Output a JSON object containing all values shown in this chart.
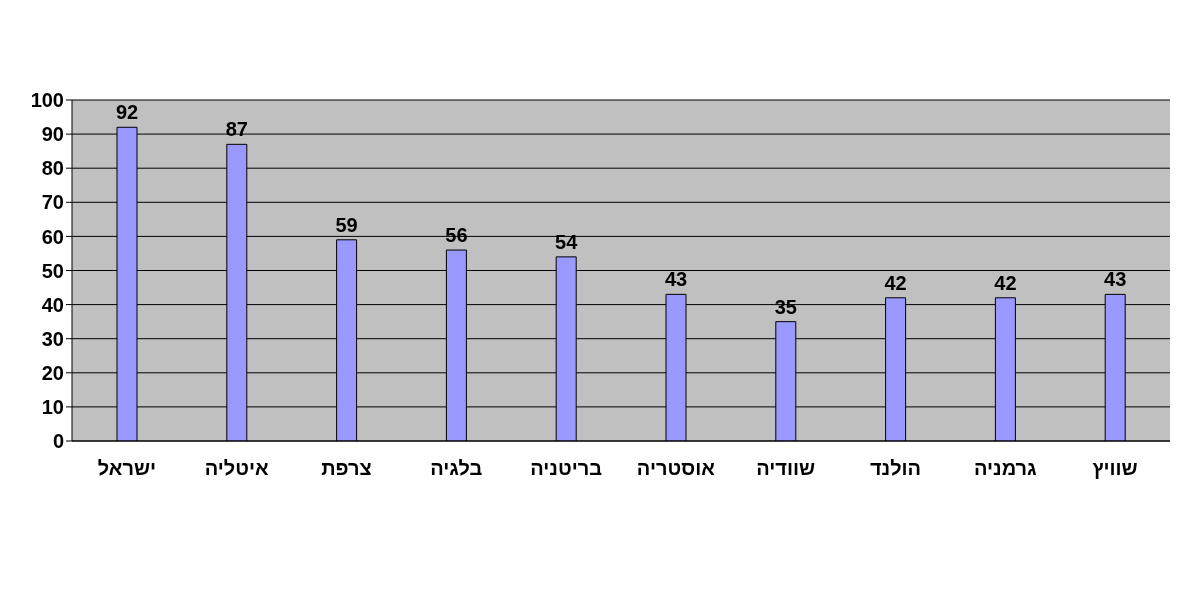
{
  "chart_data": {
    "type": "bar",
    "categories": [
      "ישראל",
      "איטליה",
      "צרפת",
      "בלגיה",
      "בריטניה",
      "אוסטריה",
      "שוודיה",
      "הולנד",
      "גרמניה",
      "שוויץ"
    ],
    "values": [
      92,
      87,
      59,
      56,
      54,
      43,
      35,
      42,
      42,
      43
    ],
    "color": "#9999ff",
    "ylim": [
      0,
      100
    ],
    "yticks": [
      0,
      10,
      20,
      30,
      40,
      50,
      60,
      70,
      80,
      90,
      100
    ],
    "grid": "y",
    "data_labels": true
  }
}
